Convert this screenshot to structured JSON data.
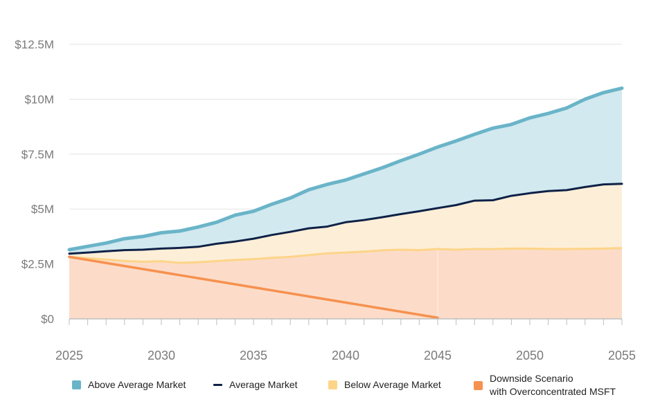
{
  "chart_data": {
    "type": "area",
    "title": "",
    "xlabel": "",
    "ylabel": "",
    "xlim": [
      2025,
      2055
    ],
    "ylim": [
      0,
      12.5
    ],
    "y_unit": "millions USD",
    "grid": true,
    "x_ticks": [
      "2025",
      "2030",
      "2035",
      "2040",
      "2045",
      "2050",
      "2055"
    ],
    "x_tick_values": [
      2025,
      2030,
      2035,
      2040,
      2045,
      2050,
      2055
    ],
    "y_ticks": [
      "$0",
      "$2.5M",
      "$5M",
      "$7.5M",
      "$10M",
      "$12.5M"
    ],
    "y_tick_values": [
      0,
      2.5,
      5,
      7.5,
      10,
      12.5
    ],
    "legend_position": "bottom",
    "series": [
      {
        "name": "Above Average Market",
        "color": "#6ab4c8",
        "fill": "#d2e9ef",
        "x": [
          2025,
          2026,
          2027,
          2028,
          2029,
          2030,
          2031,
          2032,
          2033,
          2034,
          2035,
          2036,
          2037,
          2038,
          2039,
          2040,
          2041,
          2042,
          2043,
          2044,
          2045,
          2046,
          2047,
          2048,
          2049,
          2050,
          2051,
          2052,
          2053,
          2054,
          2055
        ],
        "values": [
          3.15,
          3.3,
          3.45,
          3.65,
          3.75,
          3.92,
          4.0,
          4.18,
          4.4,
          4.72,
          4.9,
          5.22,
          5.5,
          5.88,
          6.12,
          6.32,
          6.6,
          6.88,
          7.2,
          7.5,
          7.82,
          8.1,
          8.4,
          8.68,
          8.85,
          9.15,
          9.35,
          9.6,
          10.0,
          10.3,
          10.5
        ]
      },
      {
        "name": "Average Market",
        "color": "#0e2147",
        "fill": "#fdeed8",
        "x": [
          2025,
          2026,
          2027,
          2028,
          2029,
          2030,
          2031,
          2032,
          2033,
          2034,
          2035,
          2036,
          2037,
          2038,
          2039,
          2040,
          2041,
          2042,
          2043,
          2044,
          2045,
          2046,
          2047,
          2048,
          2049,
          2050,
          2051,
          2052,
          2053,
          2054,
          2055
        ],
        "values": [
          2.97,
          3.02,
          3.08,
          3.13,
          3.15,
          3.2,
          3.23,
          3.28,
          3.42,
          3.52,
          3.65,
          3.82,
          3.96,
          4.12,
          4.2,
          4.4,
          4.5,
          4.63,
          4.77,
          4.9,
          5.04,
          5.18,
          5.38,
          5.4,
          5.6,
          5.72,
          5.82,
          5.86,
          6.0,
          6.12,
          6.15
        ]
      },
      {
        "name": "Below Average Market",
        "color": "#fdd488",
        "fill": "#fcdcc8",
        "x": [
          2025,
          2026,
          2027,
          2028,
          2029,
          2030,
          2031,
          2032,
          2033,
          2034,
          2035,
          2036,
          2037,
          2038,
          2039,
          2040,
          2041,
          2042,
          2043,
          2044,
          2045,
          2046,
          2047,
          2048,
          2049,
          2050,
          2051,
          2052,
          2053,
          2054,
          2055
        ],
        "values": [
          2.82,
          2.76,
          2.7,
          2.64,
          2.6,
          2.62,
          2.55,
          2.58,
          2.63,
          2.68,
          2.72,
          2.78,
          2.82,
          2.9,
          2.98,
          3.02,
          3.06,
          3.12,
          3.15,
          3.13,
          3.18,
          3.15,
          3.18,
          3.17,
          3.2,
          3.2,
          3.18,
          3.18,
          3.19,
          3.2,
          3.22
        ]
      },
      {
        "name": "Downside Scenario\nwith Overconcentrated MSFT",
        "color": "#f6914f",
        "x": [
          2025,
          2045
        ],
        "values": [
          2.82,
          0.05
        ]
      }
    ]
  },
  "legend": {
    "items": [
      {
        "label": "Above Average Market",
        "color": "#6ab4c8",
        "kind": "area"
      },
      {
        "label": "Average Market",
        "color": "#0e2147",
        "kind": "line"
      },
      {
        "label": "Below Average Market",
        "color": "#fdd488",
        "kind": "area"
      },
      {
        "label": "Downside Scenario\nwith Overconcentrated MSFT",
        "color": "#f6914f",
        "kind": "area"
      }
    ]
  }
}
